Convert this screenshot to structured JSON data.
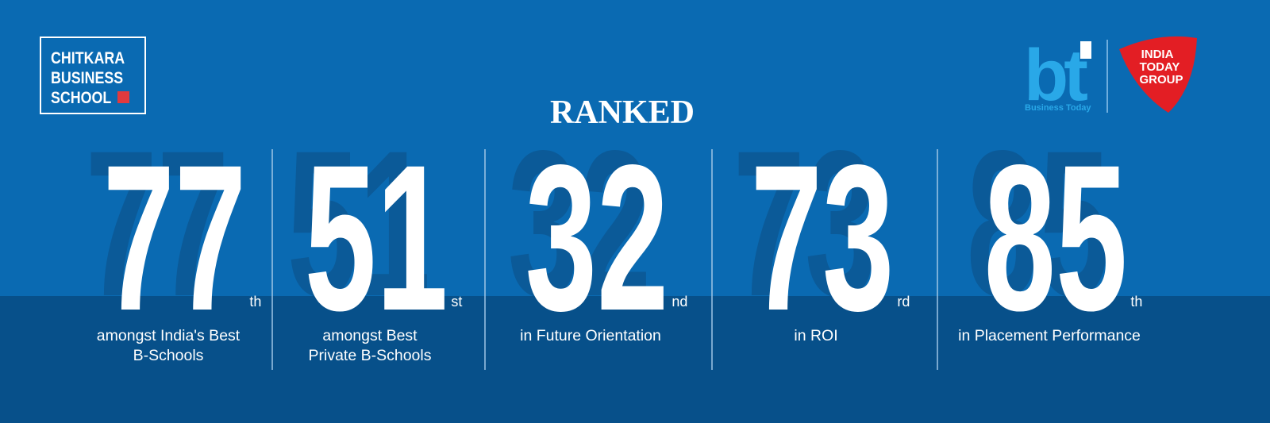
{
  "logo": {
    "lines": [
      "CHITKARA",
      "BUSINESS",
      "SCHOOL"
    ]
  },
  "partners": {
    "bt": "bt",
    "bt_caption": "Business Today",
    "itg": [
      "INDIA",
      "TODAY",
      "GROUP"
    ]
  },
  "heading": "RANKED",
  "ranks": [
    {
      "number": "77",
      "suffix": "th",
      "description": [
        "amongst India's Best",
        "B-Schools"
      ]
    },
    {
      "number": "51",
      "suffix": "st",
      "description": [
        "amongst Best",
        "Private B-Schools"
      ]
    },
    {
      "number": "32",
      "suffix": "nd",
      "description": [
        "in Future Orientation"
      ]
    },
    {
      "number": "73",
      "suffix": "rd",
      "description": [
        "in ROI"
      ]
    },
    {
      "number": "85",
      "suffix": "th",
      "description": [
        "in Placement Performance"
      ]
    }
  ]
}
